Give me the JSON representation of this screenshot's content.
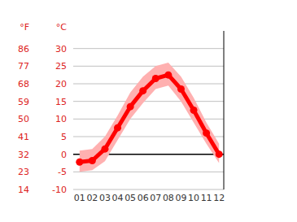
{
  "chart_data": {
    "type": "line",
    "y_label": "°C",
    "y2_label": "°F",
    "categories": [
      "01",
      "02",
      "03",
      "04",
      "05",
      "06",
      "07",
      "08",
      "09",
      "10",
      "11",
      "12"
    ],
    "series": [
      {
        "values": [
          -2.2,
          -1.8,
          1.5,
          7.5,
          13.5,
          18,
          21.5,
          22.5,
          18.5,
          12.5,
          6,
          0
        ],
        "color": "#ff0000",
        "marker": "circle"
      }
    ],
    "band": {
      "low": [
        -5,
        -4.5,
        -2,
        4,
        10,
        14.5,
        18.5,
        19.5,
        15,
        9,
        3,
        -2.5
      ],
      "high": [
        1,
        1.5,
        5,
        11,
        17.5,
        22,
        25,
        26,
        22,
        16,
        9,
        3
      ],
      "color": "#ffb0b0"
    },
    "ylim": [
      -10,
      35
    ],
    "yticks": [
      -10,
      -5,
      0,
      5,
      10,
      15,
      20,
      25,
      30
    ],
    "y2lim": [
      14,
      95
    ],
    "y2ticks": [
      14,
      23,
      32,
      41,
      50,
      59,
      68,
      77,
      86
    ],
    "grid": true
  }
}
